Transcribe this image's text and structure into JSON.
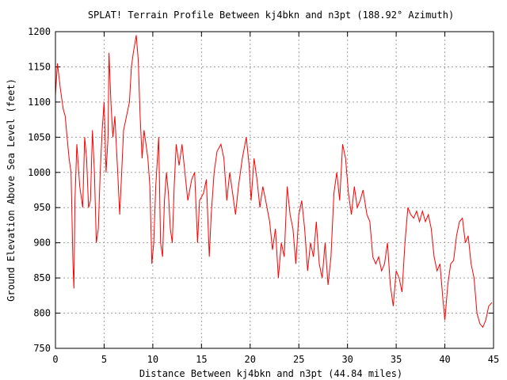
{
  "chart_data": {
    "type": "line",
    "title": "SPLAT! Terrain Profile Between kj4bkn and n3pt (188.92° Azimuth)",
    "xlabel": "Distance Between kj4bkn and n3pt (44.84 miles)",
    "ylabel": "Ground Elevation Above Sea Level (feet)",
    "xlim": [
      0,
      45
    ],
    "ylim": [
      750,
      1200
    ],
    "grid": true,
    "x_ticks": [
      "0",
      "5",
      "10",
      "15",
      "20",
      "25",
      "30",
      "35",
      "40",
      "45"
    ],
    "y_ticks": [
      "750",
      "800",
      "850",
      "900",
      "950",
      "1000",
      "1050",
      "1100",
      "1150",
      "1200"
    ],
    "line_color": "#ff0000",
    "series": [
      {
        "name": "terrain",
        "x": [
          0,
          0.2,
          0.5,
          0.8,
          1.0,
          1.2,
          1.4,
          1.6,
          1.8,
          1.9,
          2.0,
          2.2,
          2.5,
          2.8,
          3.0,
          3.2,
          3.4,
          3.6,
          3.8,
          4.0,
          4.2,
          4.4,
          4.6,
          4.8,
          5.0,
          5.2,
          5.4,
          5.5,
          5.7,
          5.9,
          6.1,
          6.4,
          6.6,
          6.8,
          7.0,
          7.3,
          7.6,
          7.8,
          8.0,
          8.3,
          8.5,
          8.7,
          8.9,
          9.1,
          9.3,
          9.5,
          9.7,
          9.9,
          10.1,
          10.3,
          10.6,
          10.8,
          11.0,
          11.2,
          11.4,
          11.6,
          11.8,
          12.0,
          12.2,
          12.4,
          12.7,
          13.0,
          13.3,
          13.6,
          14.0,
          14.3,
          14.6,
          14.8,
          15.2,
          15.5,
          15.8,
          16.0,
          16.3,
          16.6,
          17.0,
          17.3,
          17.6,
          17.9,
          18.2,
          18.5,
          18.8,
          19.2,
          19.6,
          19.9,
          20.1,
          20.4,
          20.7,
          21.0,
          21.3,
          21.6,
          22.0,
          22.3,
          22.6,
          22.9,
          23.2,
          23.5,
          23.8,
          24.1,
          24.4,
          24.7,
          25.0,
          25.3,
          25.6,
          25.9,
          26.2,
          26.5,
          26.8,
          27.1,
          27.4,
          27.7,
          28.0,
          28.3,
          28.6,
          28.9,
          29.2,
          29.5,
          29.8,
          30.1,
          30.4,
          30.7,
          31.0,
          31.3,
          31.6,
          32.0,
          32.3,
          32.6,
          32.9,
          33.2,
          33.5,
          33.8,
          34.1,
          34.4,
          34.7,
          35.0,
          35.3,
          35.6,
          35.9,
          36.2,
          36.5,
          36.8,
          37.1,
          37.4,
          37.7,
          38.0,
          38.3,
          38.6,
          38.9,
          39.2,
          39.5,
          39.8,
          40.0,
          40.3,
          40.6,
          40.9,
          41.2,
          41.5,
          41.8,
          42.1,
          42.4,
          42.7,
          43.0,
          43.3,
          43.6,
          43.9,
          44.2,
          44.5,
          44.84
        ],
        "y": [
          1110,
          1155,
          1120,
          1090,
          1080,
          1050,
          1020,
          1000,
          870,
          835,
          960,
          1040,
          980,
          950,
          1050,
          1020,
          950,
          960,
          1060,
          1000,
          900,
          920,
          1000,
          1060,
          1100,
          1000,
          1050,
          1170,
          1100,
          1050,
          1080,
          1000,
          940,
          1000,
          1060,
          1080,
          1100,
          1150,
          1170,
          1195,
          1160,
          1080,
          1020,
          1060,
          1040,
          1020,
          980,
          870,
          900,
          980,
          1050,
          900,
          880,
          960,
          1000,
          970,
          920,
          900,
          980,
          1040,
          1010,
          1040,
          1000,
          960,
          990,
          1000,
          900,
          960,
          970,
          990,
          880,
          940,
          1000,
          1030,
          1040,
          1020,
          960,
          1000,
          970,
          940,
          980,
          1020,
          1050,
          1010,
          960,
          1020,
          990,
          950,
          980,
          960,
          930,
          890,
          920,
          850,
          900,
          880,
          980,
          940,
          920,
          870,
          940,
          960,
          920,
          860,
          900,
          880,
          930,
          870,
          850,
          900,
          840,
          880,
          970,
          1000,
          960,
          1040,
          1020,
          970,
          940,
          980,
          950,
          960,
          975,
          940,
          930,
          880,
          870,
          880,
          860,
          870,
          900,
          840,
          810,
          860,
          850,
          830,
          900,
          950,
          940,
          935,
          945,
          930,
          945,
          930,
          940,
          920,
          880,
          860,
          870,
          820,
          790,
          840,
          870,
          875,
          910,
          930,
          935,
          900,
          910,
          870,
          850,
          800,
          785,
          780,
          790,
          810,
          815
        ]
      }
    ]
  }
}
